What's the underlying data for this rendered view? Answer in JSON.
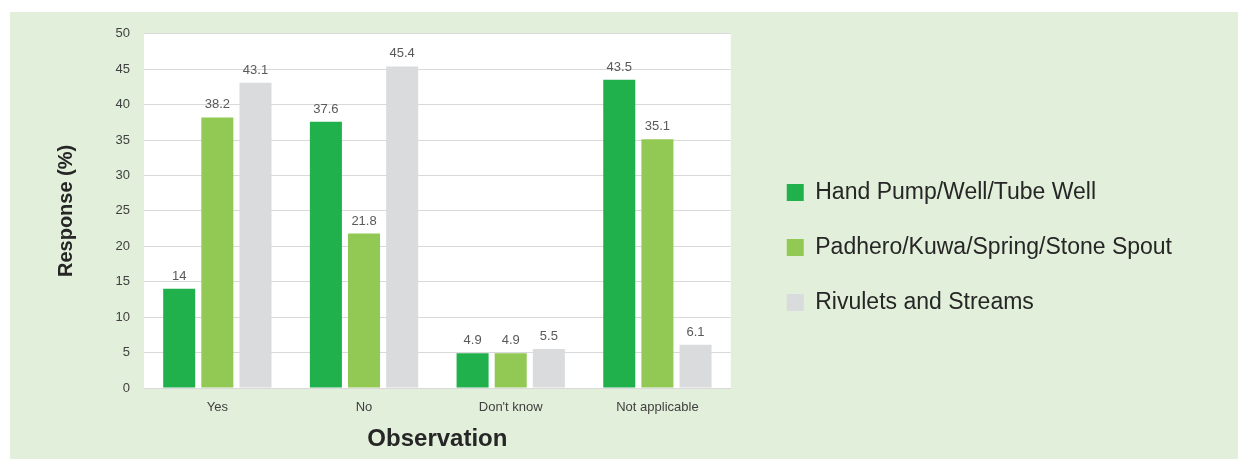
{
  "chart_data": {
    "type": "bar",
    "xlabel": "Observation",
    "ylabel": "Response (%)",
    "categories": [
      "Yes",
      "No",
      "Don't know",
      "Not applicable"
    ],
    "series": [
      {
        "name": "Hand Pump/Well/Tube Well",
        "color": "#21b14c",
        "values": [
          14,
          37.6,
          4.9,
          43.5
        ]
      },
      {
        "name": "Padhero/Kuwa/Spring/Stone Spout",
        "color": "#92c954",
        "values": [
          38.2,
          21.8,
          4.9,
          35.1
        ]
      },
      {
        "name": "Rivulets and Streams",
        "color": "#dadbdd",
        "values": [
          43.1,
          45.4,
          5.5,
          6.1
        ]
      }
    ],
    "ylim": [
      0,
      50
    ],
    "yticks": [
      0,
      5,
      10,
      15,
      20,
      25,
      30,
      35,
      40,
      45,
      50
    ],
    "grid": "y",
    "legend": "right",
    "data_labels": true
  }
}
